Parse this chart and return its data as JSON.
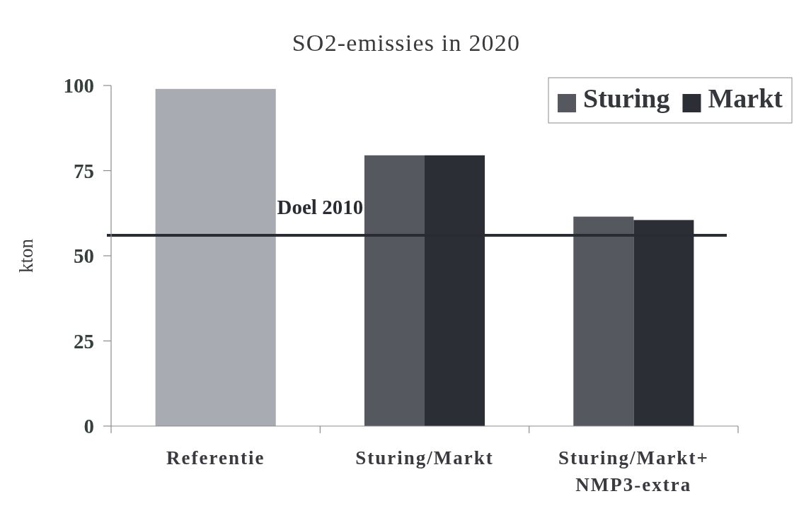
{
  "chart_data": {
    "type": "bar",
    "title": "SO2-emissies in 2020",
    "ylabel": "kton",
    "categories": [
      "Referentie",
      "Sturing/Markt",
      "Sturing/Markt+ NMP3-extra"
    ],
    "series": [
      {
        "color": "#a9abb3",
        "values": [
          99,
          null,
          null
        ]
      },
      {
        "name": "Sturing",
        "color": "#55585f",
        "values": [
          null,
          79.5,
          61.5
        ]
      },
      {
        "name": "Markt",
        "color": "#2c2e35",
        "values": [
          null,
          79.5,
          60.5
        ]
      }
    ],
    "ylim": [
      0,
      100
    ],
    "yticks": [
      0,
      25,
      50,
      75,
      100
    ],
    "legend": "top right",
    "ref_lines": [
      {
        "axis": "y",
        "value": 56,
        "label": "Doel 2010",
        "color": "#2a2c33"
      }
    ]
  }
}
